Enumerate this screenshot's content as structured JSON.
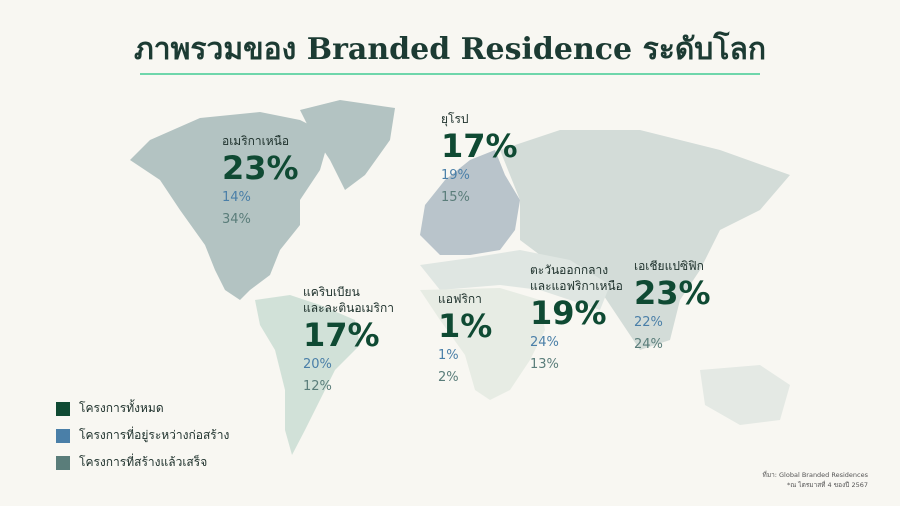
{
  "title": "ภาพรวมของ Branded Residence ระดับโลก",
  "colors": {
    "total": "#0f4a33",
    "under_construction": "#4a7fa8",
    "completed": "#5a7d7a",
    "accent_rule": "#6fd6ab"
  },
  "regions": [
    {
      "name": "อเมริกาเหนือ",
      "total": "23%",
      "under_construction": "14%",
      "completed": "34%"
    },
    {
      "name": "ยุโรป",
      "total": "17%",
      "under_construction": "19%",
      "completed": "15%"
    },
    {
      "name": "แคริบเบียน\nและละตินอเมริกา",
      "total": "17%",
      "under_construction": "20%",
      "completed": "12%"
    },
    {
      "name": "แอฟริกา",
      "total": "1%",
      "under_construction": "1%",
      "completed": "2%"
    },
    {
      "name": "ตะวันออกกลาง\nและแอฟริกาเหนือ",
      "total": "19%",
      "under_construction": "24%",
      "completed": "13%"
    },
    {
      "name": "เอเชียแปซิฟิก",
      "total": "23%",
      "under_construction": "22%",
      "completed": "24%"
    }
  ],
  "legend": [
    {
      "label": "โครงการทั้งหมด",
      "color": "#0f4a33"
    },
    {
      "label": "โครงการที่อยู่ระหว่างก่อสร้าง",
      "color": "#4a7fa8"
    },
    {
      "label": "โครงการที่สร้างแล้วเสร็จ",
      "color": "#5a7d7a"
    }
  ],
  "source": {
    "line1": "ที่มา: Global Branded Residences",
    "line2": "*ณ ไตรมาสที่ 4 ของปี 2567"
  }
}
